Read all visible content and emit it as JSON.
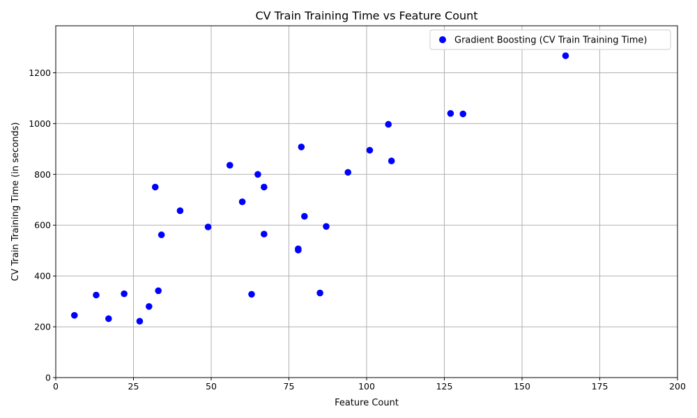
{
  "chart_data": {
    "type": "scatter",
    "title": "CV Train Training Time vs Feature Count",
    "xlabel": "Feature Count",
    "ylabel": "CV Train Training Time (in seconds)",
    "xlim": [
      0,
      200
    ],
    "ylim": [
      0,
      1385
    ],
    "xticks": [
      0,
      25,
      50,
      75,
      100,
      125,
      150,
      175,
      200
    ],
    "yticks": [
      0,
      200,
      400,
      600,
      800,
      1000,
      1200
    ],
    "grid": true,
    "legend_position": "top-right",
    "series": [
      {
        "name": "Gradient Boosting (CV Train Training Time)",
        "color": "#0000ff",
        "points": [
          [
            6,
            245
          ],
          [
            13,
            325
          ],
          [
            17,
            232
          ],
          [
            22,
            330
          ],
          [
            27,
            222
          ],
          [
            30,
            280
          ],
          [
            32,
            750
          ],
          [
            33,
            342
          ],
          [
            34,
            562
          ],
          [
            40,
            657
          ],
          [
            49,
            593
          ],
          [
            56,
            836
          ],
          [
            60,
            692
          ],
          [
            63,
            328
          ],
          [
            65,
            800
          ],
          [
            67,
            750
          ],
          [
            67,
            565
          ],
          [
            78,
            507
          ],
          [
            78,
            502
          ],
          [
            79,
            908
          ],
          [
            80,
            635
          ],
          [
            85,
            333
          ],
          [
            87,
            595
          ],
          [
            94,
            808
          ],
          [
            101,
            895
          ],
          [
            107,
            997
          ],
          [
            108,
            853
          ],
          [
            127,
            1040
          ],
          [
            131,
            1038
          ],
          [
            164,
            1267
          ]
        ]
      }
    ]
  }
}
